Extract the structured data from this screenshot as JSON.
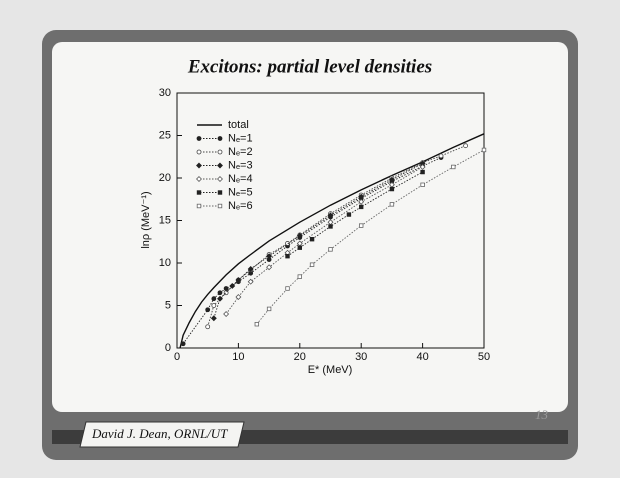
{
  "chart_data": {
    "type": "line",
    "title": "Excitons: partial level densities",
    "x_label": "E* (MeV)",
    "y_label": "lnρ (MeV⁻¹)",
    "xlim": [
      0,
      50
    ],
    "xticks": [
      0,
      10,
      20,
      30,
      40,
      50
    ],
    "ylim": [
      0,
      30
    ],
    "yticks": [
      0,
      5,
      10,
      15,
      20,
      25,
      30
    ],
    "legend": "upper left",
    "series": [
      {
        "name": "total",
        "color": "#111111",
        "line": "solid",
        "marker": "none",
        "x": [
          0.5,
          1,
          2,
          3,
          4,
          5,
          6,
          8,
          10,
          12,
          15,
          20,
          25,
          30,
          35,
          40,
          45,
          50
        ],
        "values": [
          0,
          1.5,
          3,
          4.3,
          5.4,
          6.3,
          7.1,
          8.6,
          9.9,
          11,
          12.6,
          14.8,
          16.8,
          18.6,
          20.3,
          21.9,
          23.6,
          25.2
        ]
      },
      {
        "name": "Nₑ=1",
        "color": "#222222",
        "line": "dotted",
        "marker": "circle-filled",
        "x": [
          1,
          5,
          6,
          7,
          8,
          10,
          12,
          15,
          18,
          20,
          25,
          30,
          35,
          40,
          43
        ],
        "values": [
          0.5,
          4.5,
          5.8,
          6.5,
          7,
          7.8,
          8.8,
          10.4,
          12,
          13,
          15.4,
          17.6,
          19.6,
          21.4,
          22.4
        ]
      },
      {
        "name": "Nₑ=2",
        "color": "#444444",
        "line": "dotted",
        "marker": "circle-open",
        "x": [
          5,
          6,
          8,
          10,
          12,
          15,
          18,
          20,
          25,
          30,
          35,
          40,
          43,
          47
        ],
        "values": [
          2.5,
          5,
          6.5,
          8,
          9.2,
          11,
          12.3,
          13.3,
          15.8,
          18,
          20,
          21.8,
          22.6,
          23.8
        ]
      },
      {
        "name": "Nₑ=3",
        "color": "#222222",
        "line": "dotted",
        "marker": "diamond-filled",
        "x": [
          6,
          7,
          9,
          10,
          12,
          15,
          20,
          25,
          30,
          35,
          40
        ],
        "values": [
          3.5,
          5.8,
          7.3,
          8,
          9.3,
          10.8,
          13.2,
          15.6,
          17.8,
          19.8,
          21.7
        ]
      },
      {
        "name": "Nₑ=4",
        "color": "#555555",
        "line": "dotted",
        "marker": "diamond-open",
        "x": [
          8,
          10,
          12,
          15,
          18,
          20,
          25,
          30,
          35,
          40
        ],
        "values": [
          4,
          6,
          7.8,
          9.5,
          11.2,
          12.3,
          14.8,
          17.2,
          19.2,
          21.3
        ]
      },
      {
        "name": "Nₑ=5",
        "color": "#222222",
        "line": "dotted",
        "marker": "square-filled",
        "x": [
          18,
          20,
          22,
          25,
          28,
          30,
          35,
          40
        ],
        "values": [
          10.8,
          11.8,
          12.8,
          14.3,
          15.7,
          16.6,
          18.7,
          20.7
        ]
      },
      {
        "name": "Nₑ=6",
        "color": "#666666",
        "line": "dotted",
        "marker": "square-open",
        "x": [
          13,
          15,
          18,
          20,
          22,
          25,
          30,
          35,
          40,
          45,
          50
        ],
        "values": [
          2.8,
          4.6,
          7,
          8.4,
          9.8,
          11.6,
          14.4,
          16.9,
          19.2,
          21.3,
          23.3
        ]
      }
    ]
  },
  "footer": {
    "author": "David J. Dean, ORNL/UT",
    "page": "13"
  }
}
